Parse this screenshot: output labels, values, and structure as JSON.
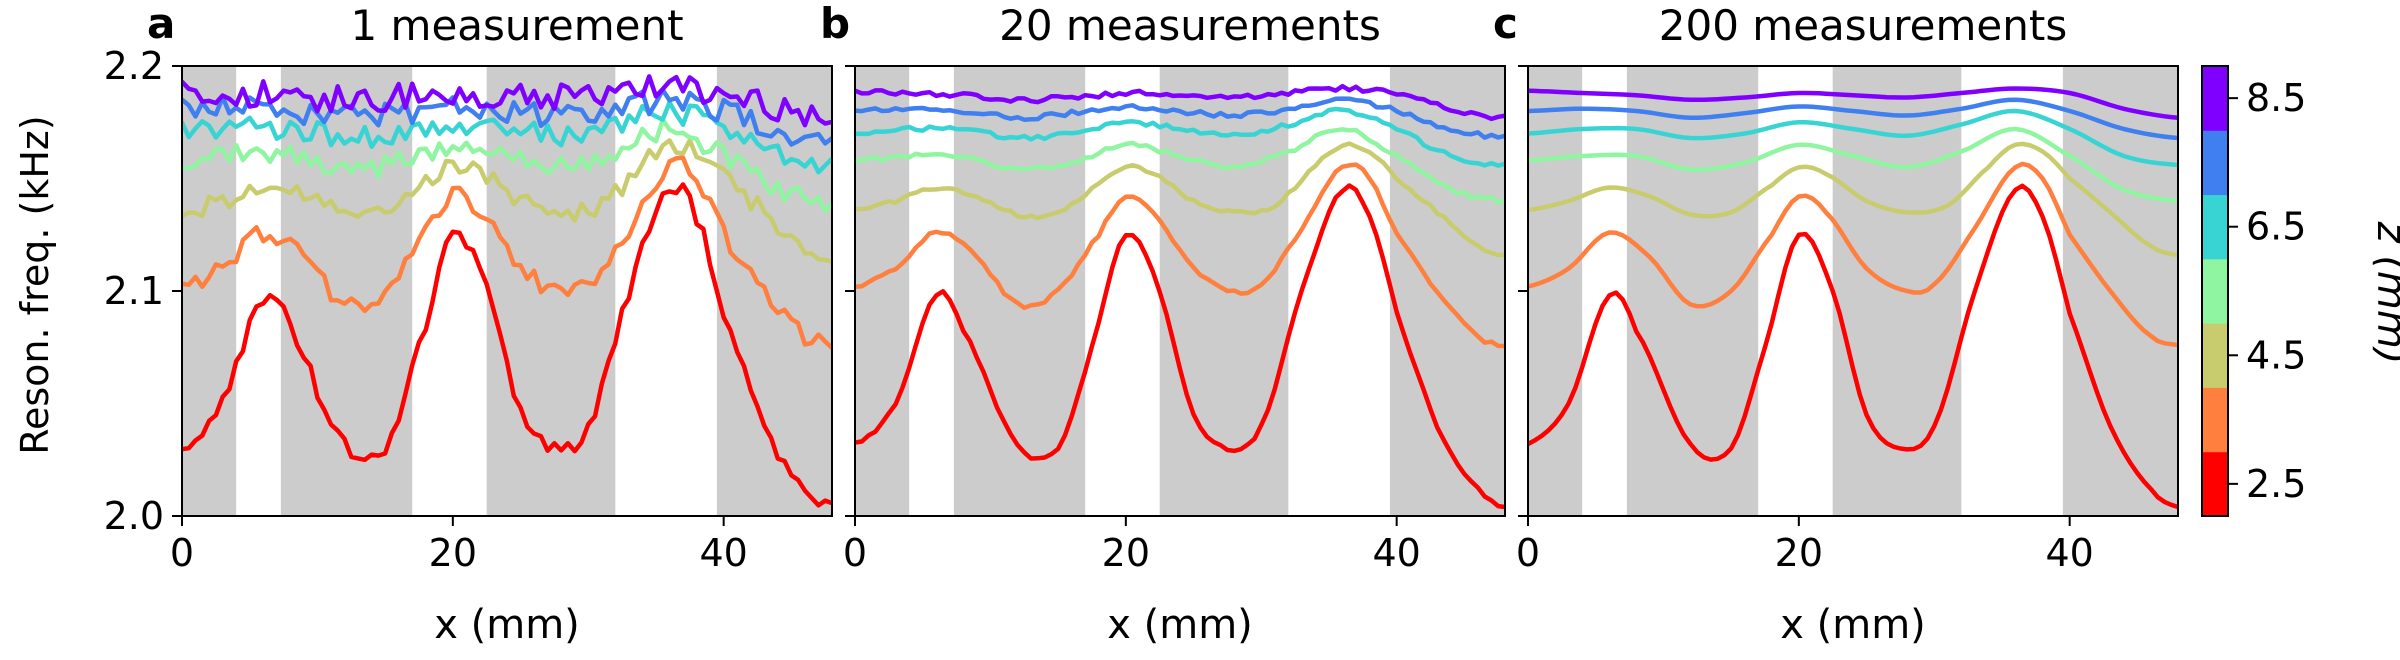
{
  "chart_data": [
    {
      "type": "line",
      "panel_letter": "a",
      "title": "1 measurement",
      "xlabel": "x (mm)",
      "ylabel": "Reson. freq. (kHz)",
      "xlim": [
        0,
        48
      ],
      "ylim": [
        2.0,
        2.2
      ],
      "xticks": [
        "0",
        "20",
        "40"
      ],
      "yticks": [
        "2.0",
        "2.1",
        "2.2"
      ],
      "gray_bands_mm": [
        [
          0,
          4
        ],
        [
          7.3,
          17
        ],
        [
          22.5,
          32
        ],
        [
          39.5,
          48
        ]
      ],
      "noise_mode": "jagged"
    },
    {
      "type": "line",
      "panel_letter": "b",
      "title": "20 measurements",
      "xlabel": "x (mm)",
      "xlim": [
        0,
        48
      ],
      "ylim": [
        2.0,
        2.2
      ],
      "xticks": [
        "0",
        "20",
        "40"
      ],
      "gray_bands_mm": [
        [
          0,
          4
        ],
        [
          7.3,
          17
        ],
        [
          22.5,
          32
        ],
        [
          39.5,
          48
        ]
      ],
      "noise_mode": "slight"
    },
    {
      "type": "line",
      "panel_letter": "c",
      "title": "200 measurements",
      "xlabel": "x (mm)",
      "xlim": [
        0,
        48
      ],
      "ylim": [
        2.0,
        2.2
      ],
      "xticks": [
        "0",
        "20",
        "40"
      ],
      "gray_bands_mm": [
        [
          0,
          4
        ],
        [
          7.3,
          17
        ],
        [
          22.5,
          32
        ],
        [
          39.5,
          48
        ]
      ],
      "noise_mode": "smooth"
    }
  ],
  "series": [
    {
      "name": "z = 2.5 mm",
      "color": "#ff0000",
      "x": [
        0,
        3,
        6,
        8,
        12,
        15,
        17.5,
        20,
        22.5,
        25,
        27.5,
        30,
        33,
        36,
        38,
        40,
        43,
        46,
        48
      ],
      "y": [
        2.032,
        2.05,
        2.098,
        2.082,
        2.032,
        2.03,
        2.075,
        2.125,
        2.1,
        2.045,
        2.03,
        2.04,
        2.1,
        2.145,
        2.133,
        2.09,
        2.04,
        2.012,
        2.004
      ]
    },
    {
      "name": "z = 3.5 mm",
      "color": "#ff7f3f",
      "x": [
        0,
        3,
        6,
        9,
        12,
        15,
        18,
        20,
        22,
        25,
        28,
        30,
        33,
        36,
        38,
        40,
        43,
        46,
        48
      ],
      "y": [
        2.102,
        2.11,
        2.126,
        2.115,
        2.094,
        2.1,
        2.125,
        2.142,
        2.135,
        2.11,
        2.1,
        2.103,
        2.128,
        2.155,
        2.15,
        2.125,
        2.1,
        2.08,
        2.076
      ]
    },
    {
      "name": "z = 4.5 mm",
      "color": "#c9cc6e",
      "x": [
        0,
        3,
        6,
        9,
        12,
        15,
        18,
        20,
        22,
        25,
        28,
        31,
        34,
        36,
        38,
        40,
        43,
        46,
        48
      ],
      "y": [
        2.136,
        2.14,
        2.146,
        2.142,
        2.134,
        2.135,
        2.147,
        2.155,
        2.152,
        2.14,
        2.135,
        2.138,
        2.155,
        2.165,
        2.162,
        2.15,
        2.135,
        2.12,
        2.116
      ]
    },
    {
      "name": "z = 5.5 mm",
      "color": "#8ff5a1",
      "x": [
        0,
        4,
        8,
        12,
        16,
        20,
        24,
        28,
        32,
        36,
        40,
        44,
        48
      ],
      "y": [
        2.158,
        2.16,
        2.16,
        2.154,
        2.157,
        2.165,
        2.16,
        2.155,
        2.162,
        2.172,
        2.16,
        2.145,
        2.14
      ]
    },
    {
      "name": "z = 6.5 mm",
      "color": "#38d4d4",
      "x": [
        0,
        4,
        8,
        12,
        16,
        20,
        24,
        28,
        32,
        36,
        40,
        44,
        48
      ],
      "y": [
        2.17,
        2.172,
        2.172,
        2.168,
        2.17,
        2.175,
        2.172,
        2.169,
        2.174,
        2.18,
        2.172,
        2.16,
        2.156
      ]
    },
    {
      "name": "z = 7.5 mm",
      "color": "#3f7fef",
      "x": [
        0,
        4,
        8,
        12,
        16,
        20,
        24,
        28,
        32,
        36,
        40,
        44,
        48
      ],
      "y": [
        2.18,
        2.181,
        2.18,
        2.177,
        2.179,
        2.182,
        2.18,
        2.178,
        2.181,
        2.185,
        2.18,
        2.172,
        2.168
      ]
    },
    {
      "name": "z = 8.5 mm",
      "color": "#8000ff",
      "x": [
        0,
        4,
        8,
        12,
        16,
        20,
        24,
        28,
        32,
        36,
        40,
        44,
        48
      ],
      "y": [
        2.189,
        2.188,
        2.187,
        2.185,
        2.186,
        2.188,
        2.187,
        2.186,
        2.188,
        2.19,
        2.188,
        2.181,
        2.177
      ]
    }
  ],
  "colorbar": {
    "label": "z (mm)",
    "ticks": [
      "2.5",
      "4.5",
      "6.5",
      "8.5"
    ],
    "colors": [
      "#ff0000",
      "#ff7f3f",
      "#c9cc6e",
      "#8ff5a1",
      "#38d4d4",
      "#3f7fef",
      "#8000ff"
    ]
  },
  "style": {
    "band_color": "#cccccc",
    "background": "#ffffff"
  }
}
